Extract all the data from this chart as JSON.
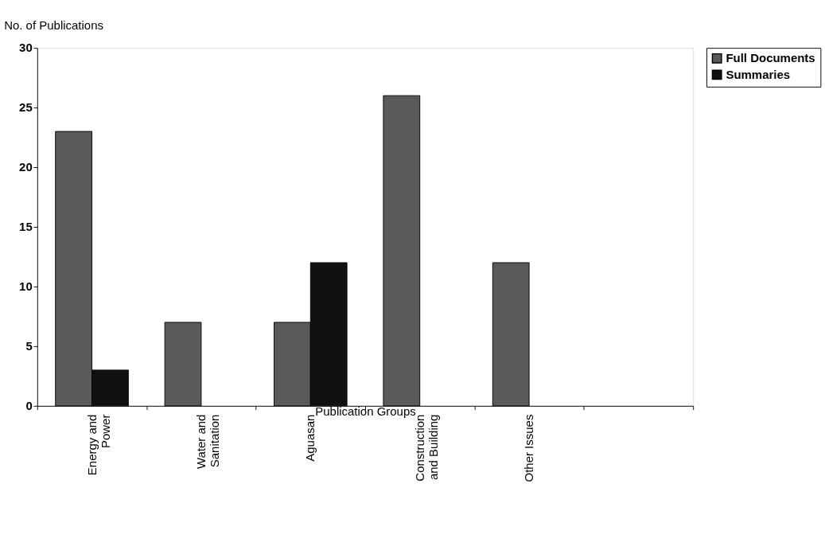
{
  "chart_data": {
    "type": "bar",
    "ylabel": "No. of Publications",
    "xlabel": "Publication Groups",
    "categories": [
      "Energy and Power",
      "Water and Sanitation",
      "Aguasan",
      "Construction and Building",
      "Other Issues",
      null
    ],
    "series": [
      {
        "name": "Full Documents",
        "color": "#5a5a5a",
        "values": [
          23,
          7,
          7,
          26,
          12,
          null
        ]
      },
      {
        "name": "Summaries",
        "color": "#111111",
        "values": [
          3,
          null,
          12,
          null,
          null,
          null
        ]
      }
    ],
    "ylim": [
      0,
      30
    ],
    "yticks": [
      0,
      5,
      10,
      15,
      20,
      25,
      30
    ],
    "grid": false,
    "legend": "right"
  }
}
